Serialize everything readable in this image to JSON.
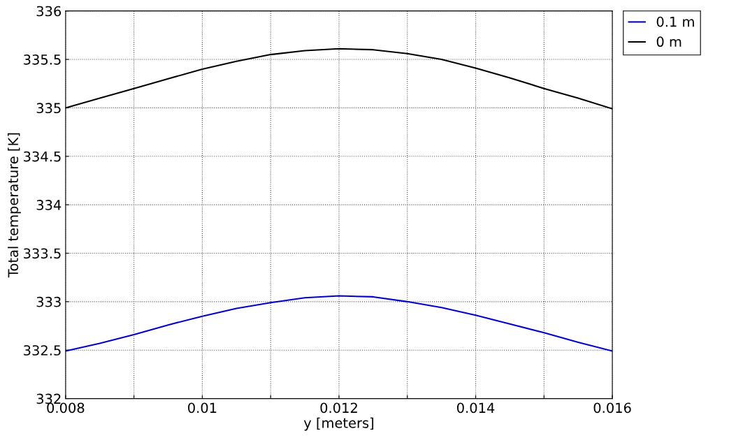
{
  "chart_data": {
    "type": "line",
    "xlabel": "y [meters]",
    "ylabel": "Total temperature [K]",
    "x": [
      0.008,
      0.0085,
      0.009,
      0.0095,
      0.01,
      0.0105,
      0.011,
      0.0115,
      0.012,
      0.0125,
      0.013,
      0.0135,
      0.014,
      0.0145,
      0.015,
      0.0155,
      0.016
    ],
    "series": [
      {
        "name": "0.1 m",
        "color": "#0000cc",
        "values": [
          332.49,
          332.57,
          332.66,
          332.76,
          332.85,
          332.93,
          332.99,
          333.04,
          333.06,
          333.05,
          333.0,
          332.94,
          332.86,
          332.77,
          332.68,
          332.58,
          332.49
        ]
      },
      {
        "name": "0 m",
        "color": "#000000",
        "values": [
          335.0,
          335.1,
          335.2,
          335.3,
          335.4,
          335.48,
          335.55,
          335.59,
          335.61,
          335.6,
          335.56,
          335.5,
          335.41,
          335.31,
          335.2,
          335.1,
          334.99
        ]
      }
    ],
    "xlim": [
      0.008,
      0.016
    ],
    "xticks": [
      0.008,
      {
        "value": 0.009,
        "label": null
      },
      0.01,
      {
        "value": 0.011,
        "label": null
      },
      0.012,
      {
        "value": 0.013,
        "label": null
      },
      0.014,
      {
        "value": 0.015,
        "label": null
      },
      0.016
    ],
    "ylim": [
      332,
      336
    ],
    "yticks": [
      332,
      332.5,
      333,
      333.5,
      334,
      334.5,
      335,
      335.5,
      336
    ],
    "grid": true,
    "legend": "top right",
    "line_style": "solid",
    "marker": "none"
  }
}
